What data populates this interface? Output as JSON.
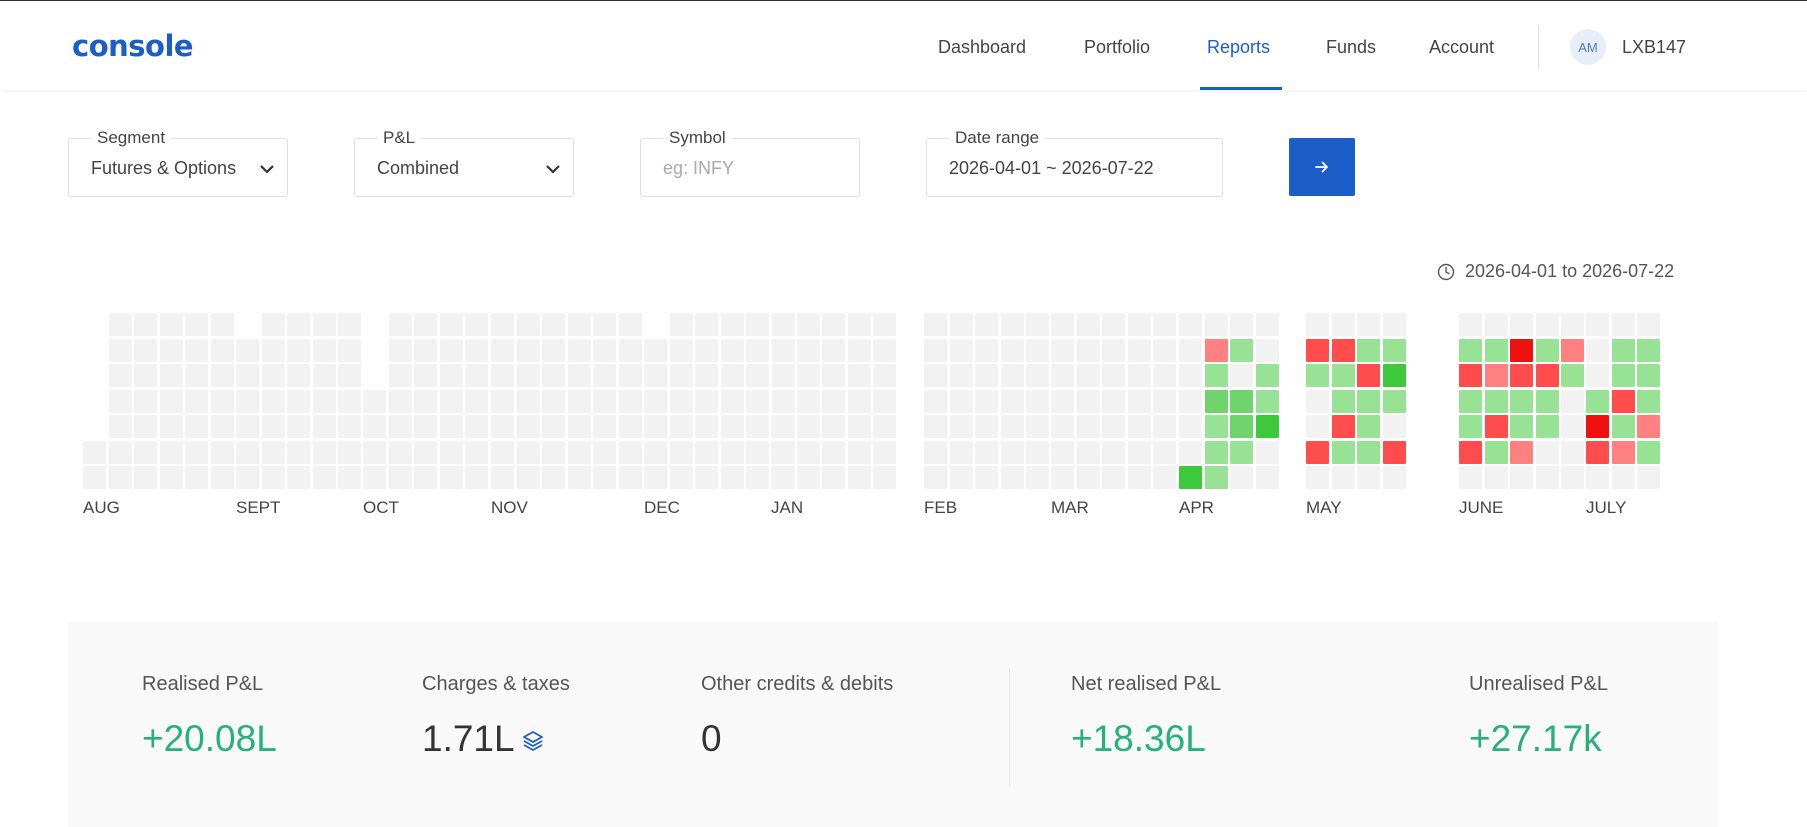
{
  "app": {
    "logo": "console",
    "nav": [
      "Dashboard",
      "Portfolio",
      "Reports",
      "Funds",
      "Account"
    ],
    "active_nav": "Reports",
    "user": {
      "initials": "AM",
      "id": "LXB147"
    }
  },
  "filters": {
    "segment": {
      "label": "Segment",
      "value": "Futures & Options"
    },
    "pnl": {
      "label": "P&L",
      "value": "Combined"
    },
    "symbol": {
      "label": "Symbol",
      "placeholder": "eg: INFY"
    },
    "date_range": {
      "label": "Date range",
      "value": "2026-04-01 ~ 2026-07-22"
    },
    "submit_icon": "arrow-right-icon"
  },
  "heatmap": {
    "range_text": "2026-04-01 to 2026-07-22",
    "months": [
      "AUG",
      "SEPT",
      "OCT",
      "NOV",
      "DEC",
      "JAN",
      "FEB",
      "MAR",
      "APR",
      "MAY",
      "JUNE",
      "JULY"
    ],
    "legend_colors": {
      "empty": "#f2f2f2",
      "profit_light": "#97e294",
      "profit_mid": "#6fd46b",
      "profit_dark": "#3ec83b",
      "loss_light": "#ff8080",
      "loss_mid": "#ff4c4c",
      "loss_dark": "#f01010"
    },
    "active_weeks": {
      "APR": [
        [
          "",
          "",
          "",
          "",
          "",
          "",
          "dark_g"
        ],
        [
          "",
          "loss_light",
          "g",
          "mid_g",
          "g",
          "g",
          "g"
        ],
        [
          "",
          "g",
          "",
          "mid_g",
          "mid_g",
          "g",
          ""
        ],
        [
          "",
          "",
          "g",
          "g",
          "dark_g",
          "",
          ""
        ]
      ],
      "MAY": [
        [
          "",
          "loss_mid",
          "g",
          "",
          "",
          "loss_mid",
          ""
        ],
        [
          "",
          "loss_mid",
          "g",
          "g",
          "loss_mid",
          "g",
          ""
        ],
        [
          "",
          "g",
          "loss_mid",
          "g",
          "g",
          "g",
          ""
        ],
        [
          "",
          "g",
          "dark_g",
          "g",
          "",
          "loss_mid",
          ""
        ]
      ],
      "JUNE": [
        [
          "",
          "g",
          "loss_mid",
          "g",
          "g",
          "loss_mid",
          ""
        ],
        [
          "",
          "g",
          "loss_light",
          "g",
          "loss_mid",
          "g",
          ""
        ],
        [
          "",
          "loss_dark",
          "loss_mid",
          "g",
          "g",
          "loss_light",
          ""
        ],
        [
          "",
          "g",
          "loss_mid",
          "g",
          "g",
          "",
          ""
        ],
        [
          "",
          "loss_light",
          "g",
          "",
          "",
          "",
          ""
        ]
      ],
      "JULY": [
        [
          "",
          "",
          "",
          "g",
          "loss_dark",
          "loss_mid",
          ""
        ],
        [
          "",
          "g",
          "g",
          "loss_mid",
          "g",
          "loss_light",
          ""
        ],
        [
          "",
          "g",
          "g",
          "g",
          "loss_light",
          "g",
          ""
        ]
      ]
    }
  },
  "summary": [
    {
      "label": "Realised P&L",
      "value": "+20.08L",
      "tone": "pos"
    },
    {
      "label": "Charges & taxes",
      "value": "1.71L",
      "tone": "neu",
      "icon": "layers-icon"
    },
    {
      "label": "Other credits & debits",
      "value": "0",
      "tone": "neu"
    },
    {
      "label": "Net realised P&L",
      "value": "+18.36L",
      "tone": "pos"
    },
    {
      "label": "Unrealised P&L",
      "value": "+27.17k",
      "tone": "pos"
    }
  ]
}
